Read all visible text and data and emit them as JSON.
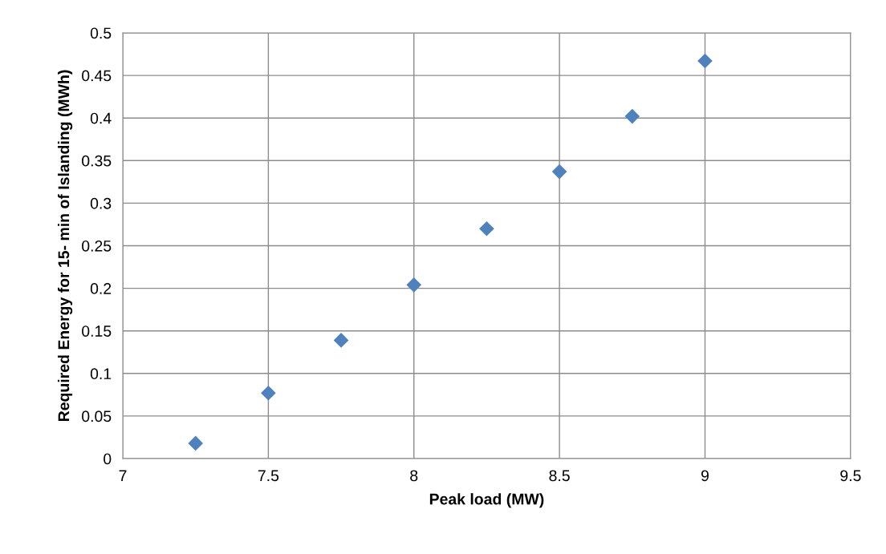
{
  "chart_data": {
    "type": "scatter",
    "xlabel": "Peak load (MW)",
    "ylabel": "Required Energy for 15- min of Islanding (MWh)",
    "x": [
      7.25,
      7.5,
      7.75,
      8.0,
      8.25,
      8.5,
      8.75,
      9.0
    ],
    "series": [
      {
        "color": "#4f81bd",
        "values": [
          0.018,
          0.077,
          0.139,
          0.204,
          0.27,
          0.337,
          0.402,
          0.467
        ]
      }
    ],
    "xlim": [
      7,
      9.5
    ],
    "xticks": [
      7,
      7.5,
      8,
      8.5,
      9,
      9.5
    ],
    "ylim": [
      0,
      0.5
    ],
    "yticks": [
      0,
      0.05,
      0.1,
      0.15,
      0.2,
      0.25,
      0.3,
      0.35,
      0.4,
      0.45,
      0.5
    ],
    "grid": true,
    "marker": "diamond",
    "legend": false
  }
}
